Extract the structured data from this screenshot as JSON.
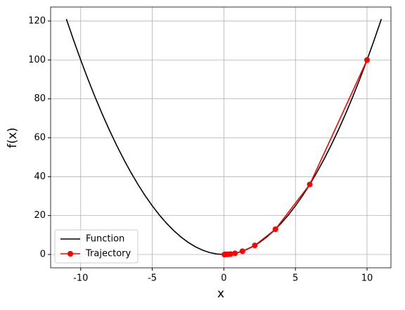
{
  "chart_data": {
    "type": "line",
    "xlabel": "x",
    "ylabel": "f(x)",
    "series": [
      {
        "name": "Function",
        "color": "#000000",
        "marker": false,
        "x": [
          -11,
          -10.5,
          -10,
          -9.5,
          -9,
          -8.5,
          -8,
          -7.5,
          -7,
          -6.5,
          -6,
          -5.5,
          -5,
          -4.5,
          -4,
          -3.5,
          -3,
          -2.5,
          -2,
          -1.5,
          -1,
          -0.5,
          0,
          0.5,
          1,
          1.5,
          2,
          2.5,
          3,
          3.5,
          4,
          4.5,
          5,
          5.5,
          6,
          6.5,
          7,
          7.5,
          8,
          8.5,
          9,
          9.5,
          10,
          10.5,
          11
        ],
        "values": [
          121,
          110.25,
          100,
          90.25,
          81,
          72.25,
          64,
          56.25,
          49,
          42.25,
          36,
          30.25,
          25,
          20.25,
          16,
          12.25,
          9,
          6.25,
          4,
          2.25,
          1,
          0.25,
          0,
          0.25,
          1,
          2.25,
          4,
          6.25,
          9,
          12.25,
          16,
          20.25,
          25,
          30.25,
          36,
          42.25,
          49,
          56.25,
          64,
          72.25,
          81,
          90.25,
          100,
          110.25,
          121
        ]
      },
      {
        "name": "Trajectory",
        "color": "#ff0000",
        "marker": true,
        "x": [
          10,
          6,
          3.6,
          2.16,
          1.296,
          0.7776,
          0.4666,
          0.2799,
          0.168,
          0.1008,
          0.0605,
          0.0363
        ],
        "values": [
          100,
          36,
          12.96,
          4.666,
          1.68,
          0.6047,
          0.2177,
          0.0784,
          0.0282,
          0.0102,
          0.0037,
          0.0013
        ]
      }
    ],
    "xlim": [
      -12.1,
      11.67
    ],
    "xticks": [
      -10,
      -5,
      0,
      5,
      10
    ],
    "ylim": [
      -6.87,
      127.2
    ],
    "yticks": [
      0,
      20,
      40,
      60,
      80,
      100,
      120
    ],
    "grid": true,
    "legend": "lower left"
  }
}
